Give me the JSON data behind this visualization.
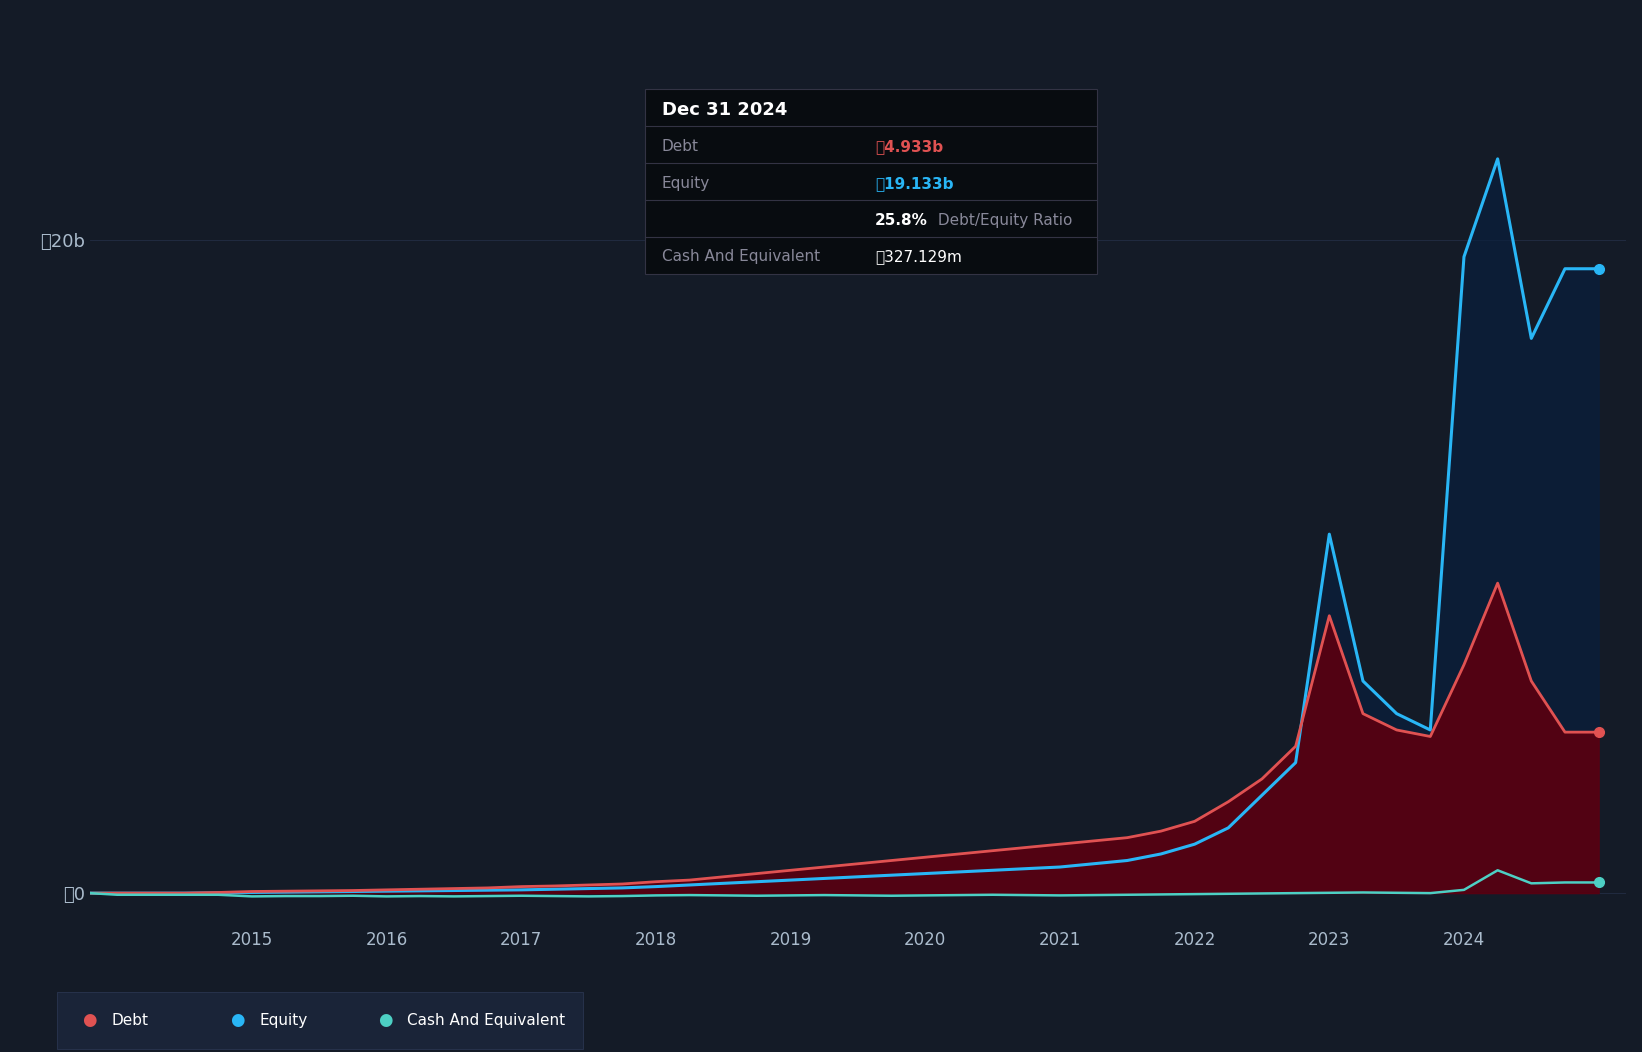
{
  "background_color": "#141b27",
  "plot_bg_color": "#141b27",
  "tooltip_title": "Dec 31 2024",
  "tooltip_debt_label": "Debt",
  "tooltip_debt_val": "₼4.933b",
  "tooltip_equity_label": "Equity",
  "tooltip_equity_val": "₼19.133b",
  "tooltip_ratio_bold": "25.8%",
  "tooltip_ratio_rest": " Debt/Equity Ratio",
  "tooltip_cash_label": "Cash And Equivalent",
  "tooltip_cash_val": "₼327.129m",
  "ylabel_top": "₼20b",
  "ylabel_zero": "₼0",
  "x_labels": [
    "2015",
    "2016",
    "2017",
    "2018",
    "2019",
    "2020",
    "2021",
    "2022",
    "2023",
    "2024"
  ],
  "debt_color": "#e05252",
  "equity_color": "#29b6f6",
  "cash_color": "#4dd0c4",
  "debt_fill_color": "#5a0010",
  "equity_fill_color": "#0a1f3d",
  "grid_color": "#2a3550",
  "text_color": "#aabbcc",
  "legend_bg": "#1a2438",
  "tooltip_bg": "#080c10",
  "tooltip_border": "#333344",
  "series": {
    "years": [
      2013.8,
      2014.0,
      2014.25,
      2014.5,
      2014.75,
      2015.0,
      2015.25,
      2015.5,
      2015.75,
      2016.0,
      2016.25,
      2016.5,
      2016.75,
      2017.0,
      2017.25,
      2017.5,
      2017.75,
      2018.0,
      2018.25,
      2018.5,
      2018.75,
      2019.0,
      2019.25,
      2019.5,
      2019.75,
      2020.0,
      2020.25,
      2020.5,
      2020.75,
      2021.0,
      2021.25,
      2021.5,
      2021.75,
      2022.0,
      2022.25,
      2022.5,
      2022.75,
      2023.0,
      2023.25,
      2023.5,
      2023.75,
      2024.0,
      2024.25,
      2024.5,
      2024.75,
      2025.0
    ],
    "debt": [
      0.0,
      0.0,
      0.0,
      0.0,
      0.02,
      0.05,
      0.06,
      0.07,
      0.08,
      0.1,
      0.12,
      0.14,
      0.16,
      0.2,
      0.22,
      0.25,
      0.28,
      0.35,
      0.4,
      0.5,
      0.6,
      0.7,
      0.8,
      0.9,
      1.0,
      1.1,
      1.2,
      1.3,
      1.4,
      1.5,
      1.6,
      1.7,
      1.9,
      2.2,
      2.8,
      3.5,
      4.5,
      8.5,
      5.5,
      5.0,
      4.8,
      7.0,
      9.5,
      6.5,
      4.933,
      4.933
    ],
    "equity": [
      0.0,
      0.0,
      0.0,
      0.0,
      0.01,
      0.02,
      0.03,
      0.04,
      0.05,
      0.06,
      0.07,
      0.08,
      0.09,
      0.1,
      0.12,
      0.14,
      0.16,
      0.2,
      0.25,
      0.3,
      0.35,
      0.4,
      0.45,
      0.5,
      0.55,
      0.6,
      0.65,
      0.7,
      0.75,
      0.8,
      0.9,
      1.0,
      1.2,
      1.5,
      2.0,
      3.0,
      4.0,
      11.0,
      6.5,
      5.5,
      5.0,
      19.5,
      22.5,
      17.0,
      19.133,
      19.133
    ],
    "cash": [
      0.0,
      -0.05,
      -0.05,
      -0.05,
      -0.05,
      -0.1,
      -0.09,
      -0.09,
      -0.08,
      -0.1,
      -0.09,
      -0.1,
      -0.09,
      -0.08,
      -0.09,
      -0.1,
      -0.09,
      -0.07,
      -0.06,
      -0.07,
      -0.08,
      -0.07,
      -0.06,
      -0.07,
      -0.08,
      -0.07,
      -0.06,
      -0.05,
      -0.06,
      -0.07,
      -0.06,
      -0.05,
      -0.04,
      -0.03,
      -0.02,
      -0.01,
      0.0,
      0.01,
      0.02,
      0.01,
      0.0,
      0.1,
      0.7,
      0.3,
      0.327,
      0.327
    ]
  },
  "ylim": [
    -1.0,
    23.5
  ],
  "xlim": [
    2013.8,
    2025.2
  ]
}
